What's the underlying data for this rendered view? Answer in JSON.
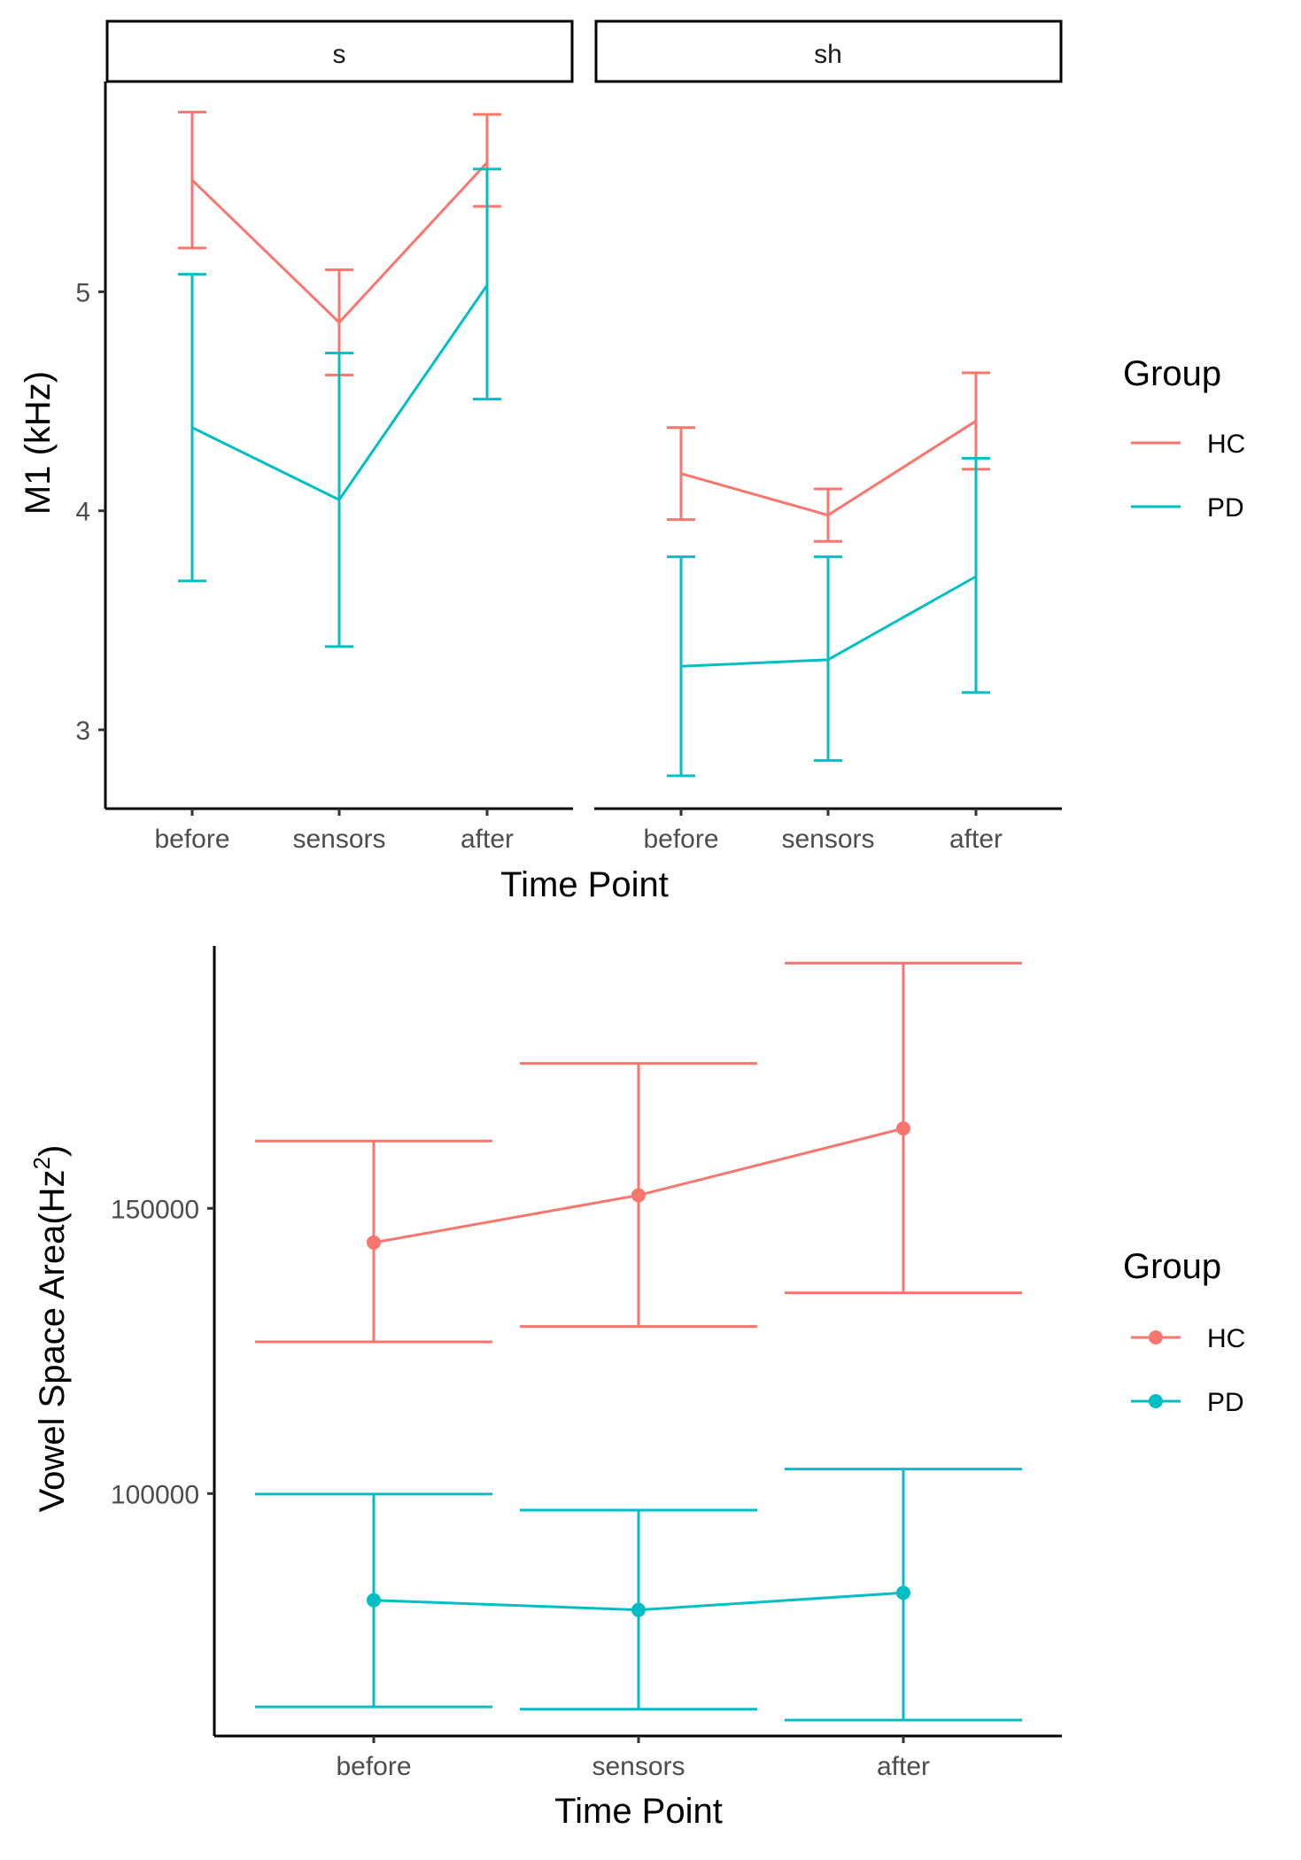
{
  "colors": {
    "HC": "#F8766D",
    "PD": "#00BFC4"
  },
  "chart_data": [
    {
      "type": "line",
      "facets": [
        "s",
        "sh"
      ],
      "categories": [
        "before",
        "sensors",
        "after"
      ],
      "xlabel": "Time Point",
      "ylabel": "M1 (kHz)",
      "yticks": [
        3,
        4,
        5
      ],
      "ylim": [
        2.64,
        5.96
      ],
      "legend": {
        "title": "Group",
        "position": "right",
        "entries": [
          "HC",
          "PD"
        ]
      },
      "panels": [
        {
          "facet": "s",
          "series": [
            {
              "name": "HC",
              "values": [
                5.51,
                4.86,
                5.59
              ],
              "lower": [
                5.2,
                4.62,
                5.39
              ],
              "upper": [
                5.82,
                5.1,
                5.81
              ]
            },
            {
              "name": "PD",
              "values": [
                4.38,
                4.05,
                5.03
              ],
              "lower": [
                3.68,
                3.38,
                4.51
              ],
              "upper": [
                5.08,
                4.72,
                5.56
              ]
            }
          ]
        },
        {
          "facet": "sh",
          "series": [
            {
              "name": "HC",
              "values": [
                4.17,
                3.98,
                4.41
              ],
              "lower": [
                3.96,
                3.86,
                4.19
              ],
              "upper": [
                4.38,
                4.1,
                4.63
              ]
            },
            {
              "name": "PD",
              "values": [
                3.29,
                3.32,
                3.7
              ],
              "lower": [
                2.79,
                2.86,
                3.17
              ],
              "upper": [
                3.79,
                3.79,
                4.24
              ]
            }
          ]
        }
      ]
    },
    {
      "type": "line",
      "categories": [
        "before",
        "sensors",
        "after"
      ],
      "xlabel": "Time Point",
      "ylabel": "Vowel Space Area(Hz²)",
      "ylabel_parts": {
        "main": "Vowel Space Area(Hz",
        "superscript": "2",
        "close": ")"
      },
      "yticks": [
        100000,
        150000
      ],
      "ytick_labels": [
        "100000",
        "150000"
      ],
      "ylim": [
        57500,
        196000
      ],
      "markers": true,
      "legend": {
        "title": "Group",
        "position": "right",
        "entries": [
          "HC",
          "PD"
        ]
      },
      "series": [
        {
          "name": "HC",
          "values": [
            144000,
            152300,
            164000
          ],
          "lower": [
            126600,
            129300,
            135200
          ],
          "upper": [
            161800,
            175400,
            193000
          ]
        },
        {
          "name": "PD",
          "values": [
            81300,
            79600,
            82600
          ],
          "lower": [
            62600,
            62200,
            60300
          ],
          "upper": [
            99900,
            97100,
            104300
          ]
        }
      ]
    }
  ]
}
